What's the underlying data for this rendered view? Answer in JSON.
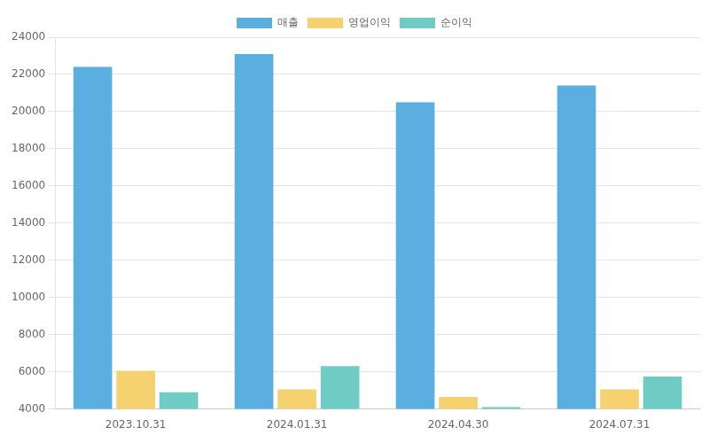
{
  "chart_data": {
    "type": "bar",
    "categories": [
      "2023.10.31",
      "2024.01.31",
      "2024.04.30",
      "2024.07.31"
    ],
    "series": [
      {
        "name": "매출",
        "color": "#5BAEE0",
        "values": [
          22400,
          23100,
          20500,
          21400
        ]
      },
      {
        "name": "영업이익",
        "color": "#F5D170",
        "values": [
          6050,
          5050,
          4650,
          5050
        ]
      },
      {
        "name": "순이익",
        "color": "#6ECCC4",
        "values": [
          4900,
          6300,
          4100,
          5750
        ]
      }
    ],
    "ylim": [
      4000,
      24000
    ],
    "yticks": [
      4000,
      6000,
      8000,
      10000,
      12000,
      14000,
      16000,
      18000,
      20000,
      22000,
      24000
    ],
    "grid": true,
    "legend": "top"
  }
}
